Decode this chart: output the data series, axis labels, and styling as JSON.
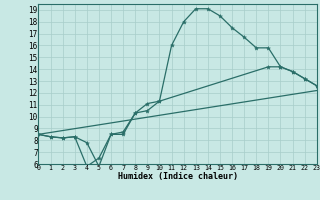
{
  "xlabel": "Humidex (Indice chaleur)",
  "xlim": [
    0,
    23
  ],
  "ylim": [
    6,
    19.5
  ],
  "xticks": [
    0,
    1,
    2,
    3,
    4,
    5,
    6,
    7,
    8,
    9,
    10,
    11,
    12,
    13,
    14,
    15,
    16,
    17,
    18,
    19,
    20,
    21,
    22,
    23
  ],
  "yticks": [
    6,
    7,
    8,
    9,
    10,
    11,
    12,
    13,
    14,
    15,
    16,
    17,
    18,
    19
  ],
  "bg_color": "#c8e8e4",
  "line_color": "#2a6e68",
  "grid_color": "#a8ceca",
  "line1_x": [
    0,
    1,
    2,
    3,
    4,
    5,
    6,
    7,
    8,
    9,
    10,
    11,
    12,
    13,
    14,
    15,
    16,
    17,
    18,
    19,
    20,
    21,
    22,
    23
  ],
  "line1_y": [
    8.5,
    8.3,
    8.2,
    8.3,
    7.8,
    5.8,
    8.5,
    8.7,
    10.3,
    11.1,
    11.3,
    16.0,
    18.0,
    19.1,
    19.1,
    18.5,
    17.5,
    16.7,
    15.8,
    15.8,
    14.2,
    13.8,
    13.2,
    12.6
  ],
  "line2_x": [
    0,
    1,
    2,
    3,
    4,
    5,
    6,
    7,
    8,
    9,
    10,
    19,
    20,
    21,
    22,
    23
  ],
  "line2_y": [
    8.5,
    8.3,
    8.2,
    8.3,
    5.8,
    6.5,
    8.5,
    8.5,
    10.3,
    10.5,
    11.3,
    14.2,
    14.2,
    13.8,
    13.2,
    12.6
  ],
  "line3_x": [
    0,
    23
  ],
  "line3_y": [
    8.5,
    12.2
  ]
}
